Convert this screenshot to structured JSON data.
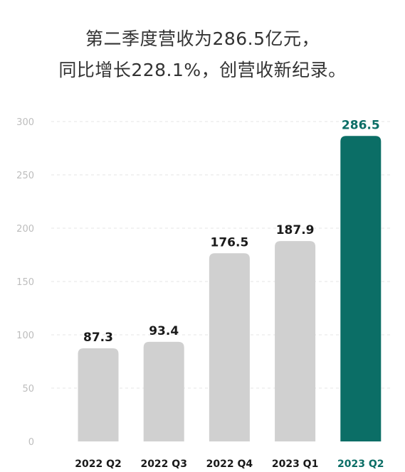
{
  "header": {
    "title_line1": "第二季度营收为286.5亿元，",
    "title_line2": "同比增长228.1%，创营收新纪录。"
  },
  "colors": {
    "bar_default": "#d0d0d0",
    "bar_highlight": "#0b6e66",
    "label_default": "#1a1a1a",
    "label_highlight": "#0b6e66",
    "axis_text": "#bdbdbd",
    "grid": "#e6e6e6"
  },
  "chart_data": {
    "type": "bar",
    "categories": [
      "2022 Q2",
      "2022 Q3",
      "2022 Q4",
      "2023 Q1",
      "2023 Q2"
    ],
    "values": [
      87.3,
      93.4,
      176.5,
      187.9,
      286.5
    ],
    "value_labels": [
      "87.3",
      "93.4",
      "176.5",
      "187.9",
      "286.5"
    ],
    "highlight_index": 4,
    "yticks": [
      "0",
      "50",
      "100",
      "150",
      "200",
      "250",
      "300"
    ],
    "ylim": [
      0,
      300
    ],
    "grid": true,
    "grid_style": "dashed",
    "legend": "none"
  }
}
